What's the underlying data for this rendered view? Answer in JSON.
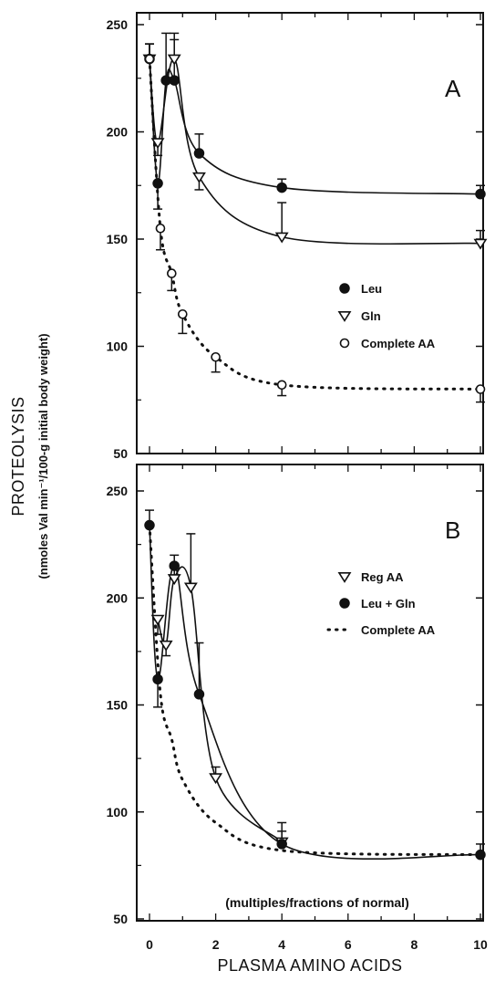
{
  "chart_data": [
    {
      "type": "line",
      "panel": "A",
      "ylim": [
        50,
        250
      ],
      "xlim": [
        0,
        10
      ],
      "yticks": [
        "250",
        "200",
        "150",
        "100",
        "50"
      ],
      "legend": [
        {
          "label": "Leu",
          "marker": "filled-circle",
          "line": "solid"
        },
        {
          "label": "Gln",
          "marker": "open-triangle",
          "line": "solid"
        },
        {
          "label": "Complete AA",
          "marker": "open-circle",
          "line": "dotted"
        }
      ],
      "series": [
        {
          "name": "Leu",
          "marker": "filled-circle",
          "line": "solid",
          "x": [
            0,
            0.25,
            0.5,
            0.75,
            1.5,
            4,
            10
          ],
          "y": [
            234,
            176,
            224,
            224,
            190,
            174,
            171
          ],
          "err": [
            7,
            12,
            22,
            22,
            9,
            4,
            4
          ]
        },
        {
          "name": "Gln",
          "marker": "open-triangle",
          "line": "solid",
          "x": [
            0,
            0.25,
            0.75,
            1.5,
            4,
            10
          ],
          "y": [
            234,
            195,
            234,
            179,
            151,
            148
          ],
          "err": [
            7,
            6,
            9,
            6,
            16,
            6
          ]
        },
        {
          "name": "Complete AA",
          "marker": "open-circle",
          "line": "dotted",
          "x": [
            0,
            0.33,
            0.67,
            1,
            2,
            4,
            10
          ],
          "y": [
            234,
            155,
            134,
            115,
            95,
            82,
            80
          ],
          "err": [
            7,
            10,
            8,
            9,
            7,
            5,
            6
          ]
        }
      ]
    },
    {
      "type": "line",
      "panel": "B",
      "ylim": [
        50,
        250
      ],
      "xlim": [
        0,
        10
      ],
      "yticks": [
        "250",
        "200",
        "150",
        "100",
        "50"
      ],
      "xticks": [
        "0",
        "2",
        "4",
        "6",
        "8",
        "10"
      ],
      "xlabel": "PLASMA AMINO ACIDS",
      "annotation": "(multiples/fractions of normal)",
      "legend": [
        {
          "label": "Reg AA",
          "marker": "open-triangle",
          "line": "solid"
        },
        {
          "label": "Leu + Gln",
          "marker": "filled-circle",
          "line": "solid"
        },
        {
          "label": "Complete AA",
          "marker": "none",
          "line": "dotted"
        }
      ],
      "series": [
        {
          "name": "Reg AA",
          "marker": "open-triangle",
          "line": "solid",
          "x": [
            0.25,
            0.5,
            0.75,
            1.25,
            2,
            4
          ],
          "y": [
            190,
            178,
            209,
            205,
            116,
            86
          ],
          "err": [
            7,
            5,
            7,
            25,
            5,
            5
          ]
        },
        {
          "name": "Leu + Gln",
          "marker": "filled-circle",
          "line": "solid",
          "x": [
            0,
            0.25,
            0.75,
            1.5,
            4,
            10
          ],
          "y": [
            234,
            162,
            215,
            155,
            85,
            80
          ],
          "err": [
            7,
            13,
            5,
            24,
            10,
            5
          ]
        },
        {
          "name": "Complete AA",
          "marker": "none",
          "line": "dotted",
          "x": [
            0,
            0.33,
            0.67,
            1,
            2,
            4,
            10
          ],
          "y": [
            234,
            155,
            134,
            115,
            95,
            82,
            80
          ]
        }
      ]
    }
  ],
  "ylabel": "PROTEOLYSIS",
  "ylabel_units": "(nmoles Val min⁻¹/100-g initial body weight)"
}
